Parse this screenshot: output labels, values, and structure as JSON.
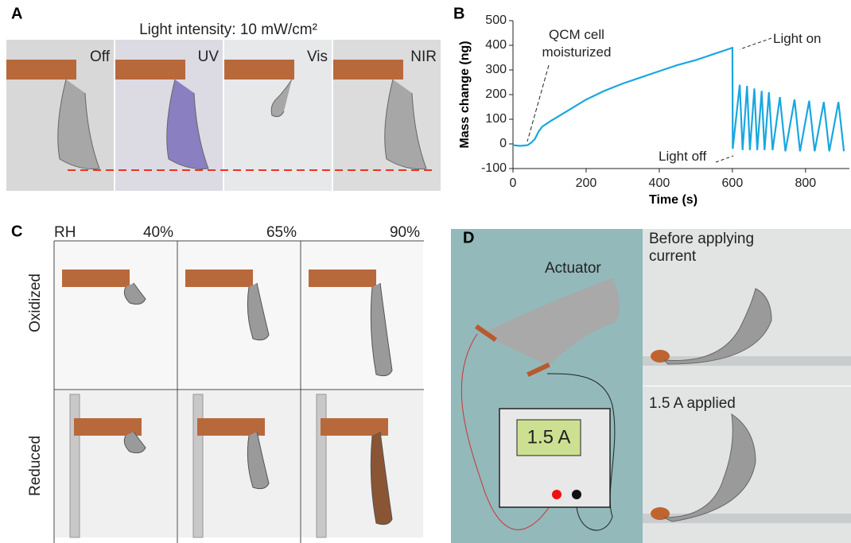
{
  "panel_a": {
    "label": "A",
    "title": "Light intensity: 10 mW/cm²",
    "photos": [
      "Off",
      "UV",
      "Vis",
      "NIR"
    ]
  },
  "chart_data": {
    "type": "line",
    "label": "B",
    "xlabel": "Time (s)",
    "ylabel": "Mass change (ng)",
    "annotations": [
      "QCM cell moisturized",
      "Light on",
      "Light off"
    ],
    "color": "#1aa7e0",
    "x": [
      0,
      20,
      40,
      50,
      60,
      70,
      80,
      100,
      150,
      200,
      250,
      300,
      350,
      400,
      450,
      500,
      550,
      600,
      601,
      620,
      628,
      640,
      648,
      660,
      668,
      680,
      688,
      700,
      710,
      730,
      745,
      770,
      785,
      810,
      825,
      850,
      865,
      890,
      905
    ],
    "values": [
      -5,
      -8,
      -5,
      5,
      20,
      50,
      70,
      90,
      135,
      180,
      215,
      245,
      270,
      295,
      320,
      340,
      365,
      390,
      -20,
      240,
      -25,
      235,
      -25,
      225,
      -25,
      215,
      -25,
      210,
      -25,
      190,
      -30,
      180,
      -30,
      175,
      -30,
      170,
      -30,
      170,
      -30
    ],
    "xlim": [
      0,
      920
    ],
    "ylim": [
      -100,
      500
    ],
    "xticks": [
      0,
      200,
      400,
      600,
      800
    ],
    "yticks": [
      -100,
      0,
      100,
      200,
      300,
      400,
      500
    ]
  },
  "panel_c": {
    "label": "C",
    "corner": "RH",
    "columns": [
      "40%",
      "65%",
      "90%"
    ],
    "rows": [
      "Oxidized",
      "Reduced"
    ]
  },
  "panel_d": {
    "label": "D",
    "actuator": "Actuator",
    "display": "1.5 A",
    "photos": [
      "Before applying current",
      "1.5 A applied"
    ]
  }
}
